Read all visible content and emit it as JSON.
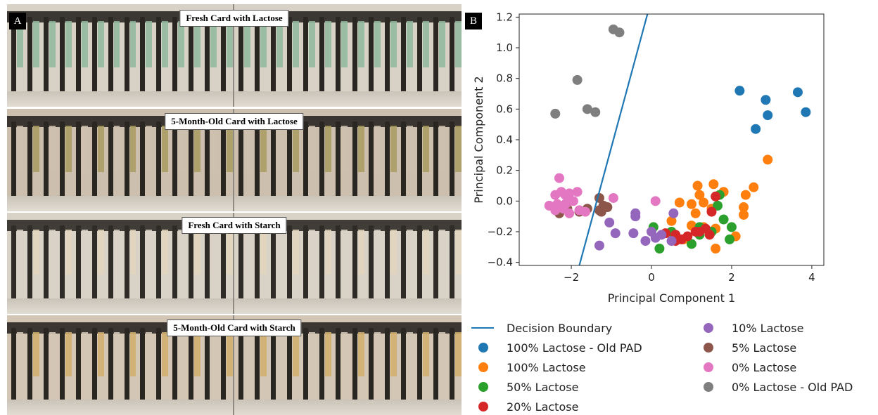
{
  "panel_a": {
    "letter": "A",
    "rows": [
      {
        "title": "Fresh Card with Lactose",
        "tint": "#7fa68a",
        "strip": "#8fb89b",
        "bg": "#d8d2c6",
        "bar": "#2a2622"
      },
      {
        "title": "5-Month-Old Card with  Lactose",
        "tint": "#9a8a5a",
        "strip": "#a99b60",
        "bg": "#cdbfae",
        "bar": "#2a2622"
      },
      {
        "title": "Fresh Card with Starch",
        "tint": "#dcd2c0",
        "strip": "#e3d6bd",
        "bg": "#d9d2c6",
        "bar": "#2f2b27"
      },
      {
        "title": "5-Month-Old Card with Starch",
        "tint": "#c9a86b",
        "strip": "#d1ae6c",
        "bg": "#d3c6b4",
        "bar": "#2a2622"
      }
    ]
  },
  "panel_b": {
    "letter": "B"
  },
  "chart_data": {
    "type": "scatter",
    "xlabel": "Principal Component 1",
    "ylabel": "Principal Component 2",
    "xlim": [
      -3.3,
      4.3
    ],
    "ylim": [
      -0.42,
      1.22
    ],
    "xticks": [
      -2,
      0,
      2,
      4
    ],
    "xtick_labels": [
      "−2",
      "0",
      "2",
      "4"
    ],
    "yticks": [
      -0.4,
      -0.2,
      0.0,
      0.2,
      0.4,
      0.6,
      0.8,
      1.0,
      1.2
    ],
    "ytick_labels": [
      "−0.4",
      "−0.2",
      "0.0",
      "0.2",
      "0.4",
      "0.6",
      "0.8",
      "1.0",
      "1.2"
    ],
    "grid": false,
    "legend_placement": "below",
    "boundary": {
      "name": "Decision Boundary",
      "color": "#1f77b4",
      "points": [
        [
          -1.8,
          -0.42
        ],
        [
          -0.1,
          1.22
        ]
      ]
    },
    "series": [
      {
        "name": "100% Lactose - Old PAD",
        "color": "#1f77b4",
        "points": [
          [
            2.2,
            0.72
          ],
          [
            2.85,
            0.66
          ],
          [
            3.65,
            0.71
          ],
          [
            2.9,
            0.56
          ],
          [
            3.85,
            0.58
          ],
          [
            2.6,
            0.47
          ]
        ]
      },
      {
        "name": "100% Lactose",
        "color": "#ff7f0e",
        "points": [
          [
            2.9,
            0.27
          ],
          [
            2.55,
            0.09
          ],
          [
            2.35,
            0.04
          ],
          [
            2.3,
            -0.04
          ],
          [
            2.3,
            -0.09
          ],
          [
            1.15,
            0.1
          ],
          [
            1.55,
            0.11
          ],
          [
            1.8,
            0.06
          ],
          [
            1.2,
            0.04
          ],
          [
            1.0,
            -0.02
          ],
          [
            1.3,
            -0.01
          ],
          [
            0.7,
            -0.01
          ],
          [
            1.5,
            -0.05
          ],
          [
            1.1,
            -0.08
          ],
          [
            0.5,
            -0.13
          ],
          [
            1.0,
            -0.16
          ],
          [
            1.3,
            -0.17
          ],
          [
            1.6,
            -0.18
          ],
          [
            2.1,
            -0.23
          ],
          [
            0.8,
            -0.25
          ],
          [
            1.6,
            -0.31
          ]
        ]
      },
      {
        "name": "50% Lactose",
        "color": "#2ca02c",
        "points": [
          [
            1.7,
            0.04
          ],
          [
            1.65,
            -0.03
          ],
          [
            1.8,
            -0.12
          ],
          [
            2.0,
            -0.17
          ],
          [
            1.5,
            -0.2
          ],
          [
            1.2,
            -0.17
          ],
          [
            0.05,
            -0.17
          ],
          [
            0.5,
            -0.2
          ],
          [
            1.0,
            -0.28
          ],
          [
            0.2,
            -0.31
          ],
          [
            1.95,
            -0.25
          ],
          [
            1.2,
            -0.22
          ]
        ]
      },
      {
        "name": "20% Lactose",
        "color": "#d62728",
        "points": [
          [
            1.6,
            0.03
          ],
          [
            1.5,
            -0.07
          ],
          [
            1.35,
            -0.18
          ],
          [
            1.2,
            -0.2
          ],
          [
            0.9,
            -0.23
          ],
          [
            0.6,
            -0.22
          ],
          [
            0.75,
            -0.25
          ],
          [
            0.35,
            -0.21
          ],
          [
            0.6,
            -0.26
          ],
          [
            1.45,
            -0.22
          ],
          [
            1.1,
            -0.2
          ]
        ]
      },
      {
        "name": "10% Lactose",
        "color": "#9467bd",
        "points": [
          [
            -0.4,
            -0.08
          ],
          [
            -0.4,
            -0.1
          ],
          [
            -1.05,
            -0.14
          ],
          [
            -0.9,
            -0.21
          ],
          [
            -1.3,
            -0.29
          ],
          [
            -0.45,
            -0.21
          ],
          [
            -0.15,
            -0.26
          ],
          [
            0.0,
            -0.2
          ],
          [
            0.1,
            -0.24
          ],
          [
            0.5,
            -0.26
          ],
          [
            0.55,
            -0.08
          ],
          [
            0.25,
            -0.22
          ]
        ]
      },
      {
        "name": "5% Lactose",
        "color": "#8c564b",
        "points": [
          [
            -1.3,
            0.02
          ],
          [
            -1.1,
            -0.04
          ],
          [
            -1.25,
            -0.07
          ],
          [
            -1.6,
            -0.05
          ],
          [
            -1.8,
            -0.07
          ],
          [
            -2.1,
            -0.05
          ],
          [
            -2.3,
            -0.08
          ],
          [
            -1.2,
            -0.03
          ],
          [
            -1.3,
            -0.06
          ]
        ]
      },
      {
        "name": "0% Lactose",
        "color": "#e377c2",
        "points": [
          [
            -2.3,
            0.15
          ],
          [
            -2.4,
            0.04
          ],
          [
            -2.25,
            0.06
          ],
          [
            -2.15,
            0.04
          ],
          [
            -2.05,
            0.05
          ],
          [
            -1.85,
            0.06
          ],
          [
            -2.55,
            -0.03
          ],
          [
            -2.35,
            -0.02
          ],
          [
            -2.1,
            -0.01
          ],
          [
            -1.95,
            0.0
          ],
          [
            -2.4,
            -0.06
          ],
          [
            -2.2,
            -0.05
          ],
          [
            -2.05,
            -0.08
          ],
          [
            -1.8,
            -0.06
          ],
          [
            -2.15,
            -0.02
          ],
          [
            -0.95,
            0.02
          ],
          [
            0.1,
            0.0
          ],
          [
            -1.65,
            -0.07
          ]
        ]
      },
      {
        "name": "0% Lactose - Old PAD",
        "color": "#7f7f7f",
        "points": [
          [
            -0.95,
            1.12
          ],
          [
            -0.8,
            1.1
          ],
          [
            -1.85,
            0.79
          ],
          [
            -2.4,
            0.57
          ],
          [
            -1.6,
            0.6
          ],
          [
            -1.4,
            0.58
          ]
        ]
      }
    ]
  }
}
